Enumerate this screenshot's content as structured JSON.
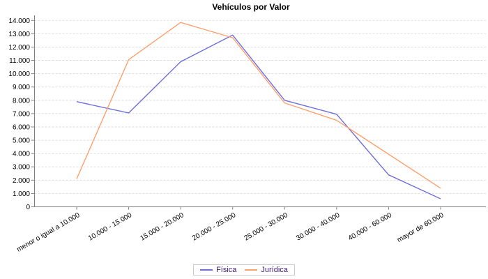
{
  "window": {
    "background": "#FFFFFF"
  },
  "chart_data": {
    "type": "line",
    "title": "Vehículos por Valor",
    "categories": [
      "menor o igual a 10.000",
      "10.000 - 15.000",
      "15.000 - 20.000",
      "20.000 - 25.000",
      "25.000 - 30.000",
      "30.000 - 40.000",
      "40.000 - 60.000",
      "mayor de 60.000"
    ],
    "series": [
      {
        "name": "Física",
        "color": "#6E6EDC",
        "values": [
          7900,
          7050,
          10900,
          12900,
          8000,
          6950,
          2400,
          600
        ]
      },
      {
        "name": "Jurídica",
        "color": "#FFA06E",
        "values": [
          2100,
          11050,
          13850,
          12700,
          7800,
          6500,
          3950,
          1400
        ]
      }
    ],
    "ylim": [
      0,
      14000
    ],
    "y_tick_step": 1000,
    "y_tick_labels": [
      "0",
      "1.000",
      "2.000",
      "3.000",
      "4.000",
      "5.000",
      "6.000",
      "7.000",
      "8.000",
      "9.000",
      "10.000",
      "11.000",
      "12.000",
      "13.000",
      "14.000"
    ],
    "grid": "horizontal-dashed",
    "grid_color": "#DDDDDD",
    "axis_color": "#808080",
    "tick_label_color": "#000000",
    "legend_position": "bottom",
    "legend_text_color": "#3D1A78",
    "legend_border_color": "#CCCCCC"
  }
}
